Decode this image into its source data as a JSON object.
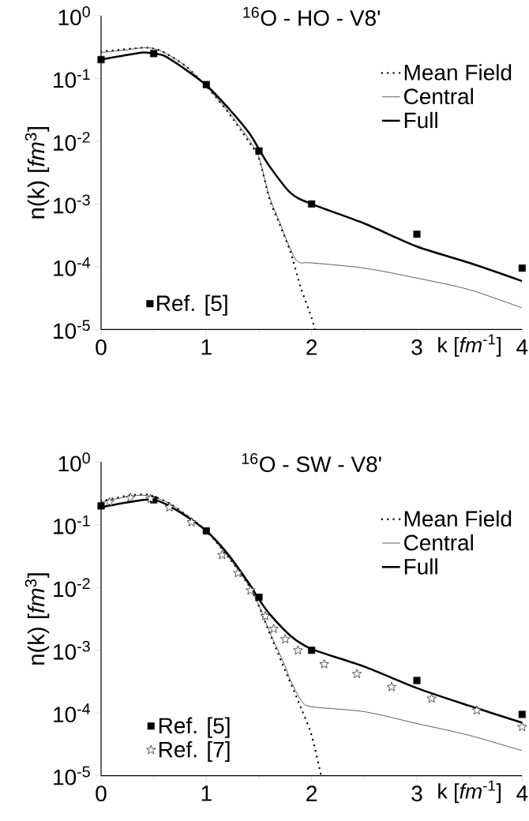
{
  "chart_data": [
    {
      "type": "line",
      "title": "$^{16}$O - HO - V8'",
      "xlabel": "k [*fm*$^{-1}$]",
      "ylabel": "n(k) [*fm*$^{3}$]",
      "log": "y",
      "legend": "right",
      "xlim": [
        0,
        4
      ],
      "ylim": [
        1e-05,
        1
      ],
      "xticks": [
        0,
        1,
        2,
        3,
        4
      ],
      "yticks": [
        {
          "value": 1e-05,
          "label": "10$^{-5}$"
        },
        {
          "value": 0.0001,
          "label": "10$^{-4}$"
        },
        {
          "value": 0.001,
          "label": "10$^{-3}$"
        },
        {
          "value": 0.01,
          "label": "10$^{-2}$"
        },
        {
          "value": 0.1,
          "label": "10$^{-1}$"
        },
        {
          "value": 1,
          "label": "10$^{0}$"
        }
      ],
      "series": [
        {
          "name": "Mean Field",
          "type": "line",
          "line_style": "dotted",
          "marker": "none",
          "color": "#000000",
          "x": [
            0,
            0.2,
            0.4,
            0.5,
            0.6,
            0.8,
            1.0,
            1.2,
            1.4,
            1.5,
            1.6,
            1.7,
            1.8,
            1.9,
            2.0,
            2.03
          ],
          "values": [
            0.27,
            0.29,
            0.31,
            0.3,
            0.26,
            0.16,
            0.075,
            0.03,
            0.01,
            0.0053,
            0.0012,
            0.00046,
            0.00017,
            4.5e-05,
            1.55e-05,
            1e-05
          ]
        },
        {
          "name": "Central",
          "type": "line",
          "line_style": "solid",
          "marker": "none",
          "color": "#333333",
          "x": [
            0,
            0.2,
            0.4,
            0.5,
            0.6,
            0.8,
            1.0,
            1.2,
            1.4,
            1.5,
            1.6,
            1.7,
            1.75,
            1.8,
            1.85,
            1.9,
            2.0,
            2.5,
            3.0,
            3.5,
            4.0
          ],
          "values": [
            0.26,
            0.28,
            0.31,
            0.3,
            0.26,
            0.16,
            0.075,
            0.031,
            0.011,
            0.0055,
            0.0013,
            0.0005,
            0.0003,
            0.00019,
            0.00013,
            0.000115,
            0.000115,
            9.5e-05,
            6.6e-05,
            4.3e-05,
            2.2e-05
          ]
        },
        {
          "name": "Full",
          "type": "line",
          "line_style": "solid",
          "marker": "none",
          "color": "#000000",
          "x": [
            0,
            0.2,
            0.4,
            0.5,
            0.6,
            0.8,
            1.0,
            1.2,
            1.4,
            1.5,
            1.6,
            1.8,
            2.0,
            2.5,
            3.0,
            3.5,
            4.0
          ],
          "values": [
            0.2,
            0.23,
            0.26,
            0.25,
            0.23,
            0.14,
            0.078,
            0.035,
            0.014,
            0.0075,
            0.004,
            0.0015,
            0.001,
            0.00049,
            0.00021,
            0.000115,
            5.9e-05
          ]
        },
        {
          "name": "Ref. [5]",
          "type": "scatter",
          "marker": "square",
          "color": "#000000",
          "x": [
            0,
            0.5,
            1,
            1.5,
            2,
            3,
            4
          ],
          "values": [
            0.2,
            0.25,
            0.08,
            0.007,
            0.001,
            0.00033,
            9.5e-05
          ]
        }
      ]
    },
    {
      "type": "line",
      "title": "$^{16}$O - SW - V8'",
      "xlabel": "k [*fm*$^{-1}$]",
      "ylabel": "n(k) [*fm*$^{3}$]",
      "log": "y",
      "legend": "right",
      "xlim": [
        0,
        4
      ],
      "ylim": [
        1e-05,
        1
      ],
      "xticks": [
        0,
        1,
        2,
        3,
        4
      ],
      "yticks": [
        {
          "value": 1e-05,
          "label": "10$^{-5}$"
        },
        {
          "value": 0.0001,
          "label": "10$^{-4}$"
        },
        {
          "value": 0.001,
          "label": "10$^{-3}$"
        },
        {
          "value": 0.01,
          "label": "10$^{-2}$"
        },
        {
          "value": 0.1,
          "label": "10$^{-1}$"
        },
        {
          "value": 1,
          "label": "10$^{0}$"
        }
      ],
      "series": [
        {
          "name": "Mean Field",
          "type": "line",
          "line_style": "dotted",
          "marker": "none",
          "color": "#000000",
          "x": [
            0,
            0.15,
            0.3,
            0.45,
            0.65,
            0.87,
            1.0,
            1.2,
            1.4,
            1.5,
            1.6,
            1.75,
            1.8,
            1.9,
            2.0,
            2.09
          ],
          "values": [
            0.24,
            0.27,
            0.3,
            0.3,
            0.22,
            0.12,
            0.08,
            0.032,
            0.011,
            0.005,
            0.0019,
            0.00047,
            0.0003,
            0.00012,
            4.4e-05,
            1e-05
          ]
        },
        {
          "name": "Central",
          "type": "line",
          "line_style": "solid",
          "marker": "none",
          "color": "#333333",
          "x": [
            0,
            0.15,
            0.3,
            0.45,
            0.65,
            0.87,
            1.0,
            1.2,
            1.4,
            1.5,
            1.6,
            1.75,
            1.8,
            1.9,
            2.0,
            2.5,
            3.0,
            3.5,
            4.0
          ],
          "values": [
            0.23,
            0.26,
            0.29,
            0.29,
            0.22,
            0.12,
            0.08,
            0.032,
            0.011,
            0.0052,
            0.002,
            0.00055,
            0.00033,
            0.00016,
            0.000126,
            0.000105,
            6.8e-05,
            4.4e-05,
            2.5e-05
          ]
        },
        {
          "name": "Full",
          "type": "line",
          "line_style": "solid",
          "marker": "none",
          "color": "#000000",
          "x": [
            0,
            0.2,
            0.4,
            0.5,
            0.6,
            0.8,
            1.0,
            1.2,
            1.4,
            1.5,
            1.6,
            1.8,
            2.0,
            2.5,
            3.0,
            3.5,
            4.0
          ],
          "values": [
            0.19,
            0.22,
            0.25,
            0.25,
            0.22,
            0.14,
            0.08,
            0.035,
            0.012,
            0.0065,
            0.0038,
            0.0017,
            0.00105,
            0.00055,
            0.00025,
            0.00013,
            7e-05
          ]
        },
        {
          "name": "Ref. [5]",
          "type": "scatter",
          "marker": "square",
          "color": "#000000",
          "x": [
            0,
            0.5,
            1,
            1.5,
            2,
            3,
            4
          ],
          "values": [
            0.2,
            0.25,
            0.08,
            0.007,
            0.001,
            0.00033,
            9.5e-05
          ]
        },
        {
          "name": "Ref. [7]",
          "type": "scatter",
          "marker": "star",
          "color": "#000000",
          "x": [
            0.08,
            0.28,
            0.47,
            0.65,
            0.86,
            1.15,
            1.3,
            1.42,
            1.56,
            1.64,
            1.75,
            1.87,
            2.12,
            2.43,
            2.76,
            3.14,
            3.57,
            4.0
          ],
          "values": [
            0.23,
            0.27,
            0.26,
            0.19,
            0.11,
            0.033,
            0.017,
            0.009,
            0.0035,
            0.0022,
            0.0015,
            0.001,
            0.0006,
            0.00042,
            0.00026,
            0.00017,
            0.00011,
            6e-05
          ]
        }
      ]
    }
  ]
}
